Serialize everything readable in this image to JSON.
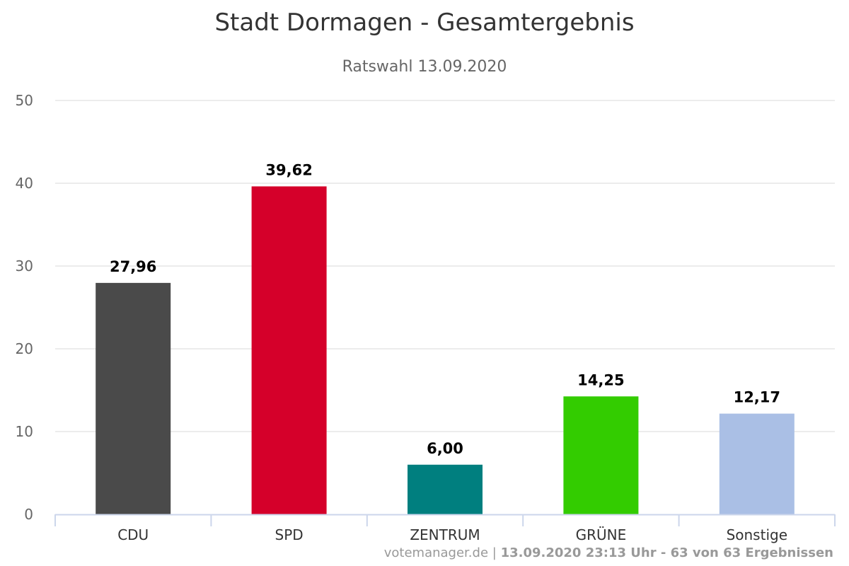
{
  "colors": {
    "cdu": "#4a4a4a",
    "spd": "#d5002a",
    "zentrum": "#007f7f",
    "gruene": "#33cc00",
    "sonstige": "#aabfe5",
    "grid": "#e6e6e6",
    "axis": "#ccd6eb"
  },
  "credits": {
    "source": "votemanager.de",
    "separator": "|",
    "detail": "13.09.2020 23:13 Uhr - 63 von 63 Ergebnissen"
  },
  "chart_data": {
    "type": "bar",
    "title": "Stadt Dormagen - Gesamtergebnis",
    "subtitle": "Ratswahl 13.09.2020",
    "categories": [
      "CDU",
      "SPD",
      "ZENTRUM",
      "GRÜNE",
      "Sonstige"
    ],
    "values": [
      27.96,
      39.62,
      6.0,
      14.25,
      12.17
    ],
    "value_labels": [
      "27,96",
      "39,62",
      "6,00",
      "14,25",
      "12,17"
    ],
    "bar_colors": [
      "#4a4a4a",
      "#d5002a",
      "#007f7f",
      "#33cc00",
      "#aabfe5"
    ],
    "ylim": [
      0,
      50
    ],
    "yticks": [
      0,
      10,
      20,
      30,
      40,
      50
    ],
    "grid": true,
    "legend": "none"
  }
}
